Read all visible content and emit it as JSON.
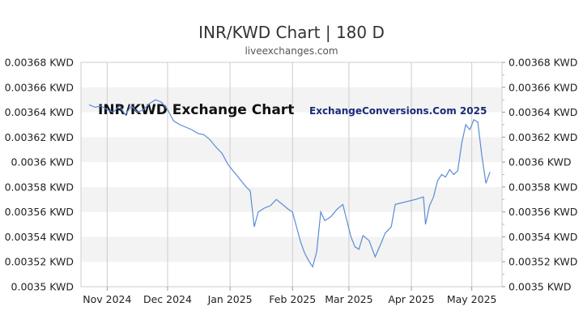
{
  "chart_data": {
    "type": "line",
    "title": "INR/KWD Chart | 180 D",
    "subtitle": "liveexchanges.com",
    "watermark_left": "INR/KWD Exchange Chart",
    "watermark_right": "ExchangeConversions.Com 2025",
    "xlabel": "",
    "ylabel": "",
    "ylim": [
      0.0035,
      0.00368
    ],
    "y_ticks": [
      "0.00368 KWD",
      "0.00366 KWD",
      "0.00364 KWD",
      "0.00362 KWD",
      "0.0036 KWD",
      "0.00358 KWD",
      "0.00356 KWD",
      "0.00354 KWD",
      "0.00352 KWD",
      "0.0035 KWD"
    ],
    "y_tick_values": [
      0.00368,
      0.00366,
      0.00364,
      0.00362,
      0.0036,
      0.00358,
      0.00356,
      0.00354,
      0.00352,
      0.0035
    ],
    "x_range": [
      "2024-10-19",
      "2025-05-16"
    ],
    "x_ticks": [
      {
        "label": "Nov 2024",
        "date": "2024-11-01"
      },
      {
        "label": "Dec 2024",
        "date": "2024-12-01"
      },
      {
        "label": "Jan 2025",
        "date": "2025-01-01"
      },
      {
        "label": "Feb 2025",
        "date": "2025-02-01"
      },
      {
        "label": "Mar 2025",
        "date": "2025-03-01"
      },
      {
        "label": "Apr 2025",
        "date": "2025-04-01"
      },
      {
        "label": "May 2025",
        "date": "2025-05-01"
      }
    ],
    "grid": true,
    "line_color": "#5b8bd6",
    "band_color": "#f3f3f3",
    "series": [
      {
        "points": [
          [
            "2024-10-23",
            0.003646
          ],
          [
            "2024-10-26",
            0.003644
          ],
          [
            "2024-10-29",
            0.003645
          ],
          [
            "2024-11-01",
            0.003642
          ],
          [
            "2024-11-04",
            0.00364
          ],
          [
            "2024-11-07",
            0.003645
          ],
          [
            "2024-11-10",
            0.003638
          ],
          [
            "2024-11-13",
            0.003645
          ],
          [
            "2024-11-16",
            0.00364
          ],
          [
            "2024-11-19",
            0.003642
          ],
          [
            "2024-11-22",
            0.003647
          ],
          [
            "2024-11-25",
            0.00365
          ],
          [
            "2024-11-28",
            0.003648
          ],
          [
            "2024-12-01",
            0.003642
          ],
          [
            "2024-12-04",
            0.003633
          ],
          [
            "2024-12-07",
            0.00363
          ],
          [
            "2024-12-10",
            0.003628
          ],
          [
            "2024-12-13",
            0.003626
          ],
          [
            "2024-12-16",
            0.003623
          ],
          [
            "2024-12-19",
            0.003622
          ],
          [
            "2024-12-22",
            0.003618
          ],
          [
            "2024-12-25",
            0.003612
          ],
          [
            "2024-12-28",
            0.003607
          ],
          [
            "2024-12-31",
            0.003598
          ],
          [
            "2025-01-03",
            0.003592
          ],
          [
            "2025-01-06",
            0.003586
          ],
          [
            "2025-01-09",
            0.00358
          ],
          [
            "2025-01-11",
            0.003577
          ],
          [
            "2025-01-13",
            0.003548
          ],
          [
            "2025-01-15",
            0.00356
          ],
          [
            "2025-01-18",
            0.003563
          ],
          [
            "2025-01-21",
            0.003565
          ],
          [
            "2025-01-24",
            0.00357
          ],
          [
            "2025-01-27",
            0.003566
          ],
          [
            "2025-01-30",
            0.003562
          ],
          [
            "2025-02-01",
            0.00356
          ],
          [
            "2025-02-03",
            0.003548
          ],
          [
            "2025-02-05",
            0.003536
          ],
          [
            "2025-02-07",
            0.003527
          ],
          [
            "2025-02-09",
            0.003521
          ],
          [
            "2025-02-11",
            0.003516
          ],
          [
            "2025-02-13",
            0.003528
          ],
          [
            "2025-02-15",
            0.00356
          ],
          [
            "2025-02-17",
            0.003553
          ],
          [
            "2025-02-20",
            0.003556
          ],
          [
            "2025-02-23",
            0.003562
          ],
          [
            "2025-02-26",
            0.003566
          ],
          [
            "2025-02-28",
            0.003553
          ],
          [
            "2025-03-02",
            0.00354
          ],
          [
            "2025-03-04",
            0.003532
          ],
          [
            "2025-03-06",
            0.00353
          ],
          [
            "2025-03-08",
            0.003541
          ],
          [
            "2025-03-11",
            0.003537
          ],
          [
            "2025-03-14",
            0.003524
          ],
          [
            "2025-03-17",
            0.003535
          ],
          [
            "2025-03-19",
            0.003543
          ],
          [
            "2025-03-22",
            0.003548
          ],
          [
            "2025-03-24",
            0.003566
          ],
          [
            "2025-04-03",
            0.00357
          ],
          [
            "2025-04-07",
            0.003572
          ],
          [
            "2025-04-08",
            0.00355
          ],
          [
            "2025-04-10",
            0.003565
          ],
          [
            "2025-04-12",
            0.003572
          ],
          [
            "2025-04-14",
            0.003585
          ],
          [
            "2025-04-16",
            0.00359
          ],
          [
            "2025-04-18",
            0.003588
          ],
          [
            "2025-04-20",
            0.003594
          ],
          [
            "2025-04-22",
            0.00359
          ],
          [
            "2025-04-24",
            0.003593
          ],
          [
            "2025-04-26",
            0.003615
          ],
          [
            "2025-04-28",
            0.00363
          ],
          [
            "2025-04-30",
            0.003626
          ],
          [
            "2025-05-02",
            0.003634
          ],
          [
            "2025-05-04",
            0.003632
          ],
          [
            "2025-05-06",
            0.003605
          ],
          [
            "2025-05-08",
            0.003583
          ],
          [
            "2025-05-10",
            0.003592
          ]
        ]
      }
    ]
  }
}
